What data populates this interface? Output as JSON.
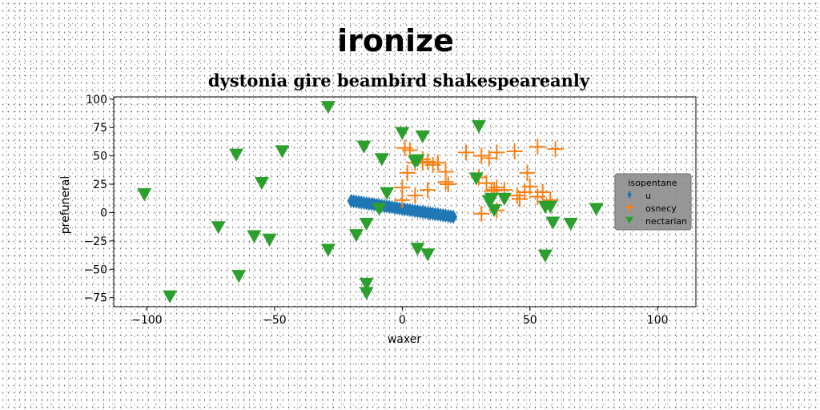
{
  "chart_data": {
    "type": "scatter",
    "title": "ironize",
    "subtitle": "dystonia gire beambird shakespeareanly",
    "xlabel": "waxer",
    "ylabel": "prefuneral",
    "xlim": [
      -113,
      115
    ],
    "ylim": [
      -83,
      102
    ],
    "xticks": [
      -100,
      -50,
      0,
      50,
      100
    ],
    "yticks": [
      -75,
      -50,
      -25,
      0,
      25,
      50,
      75,
      100
    ],
    "grid": false,
    "legend": {
      "title": "isopentane",
      "placement": "center-right"
    },
    "series": [
      {
        "name": "u",
        "marker": "thin_diamond",
        "color": "#1f77b4",
        "x": [
          -20,
          -19,
          -18,
          -17,
          -16,
          -15,
          -14,
          -13,
          -12,
          -11,
          -10,
          -9,
          -8,
          -7,
          -6,
          -5,
          -4,
          -3,
          -2,
          -1,
          0,
          1,
          2,
          3,
          4,
          5,
          6,
          7,
          8,
          9,
          10,
          11,
          12,
          13,
          14,
          15,
          16,
          17,
          18,
          19,
          20
        ],
        "y": [
          10.3,
          9.9,
          9.6,
          9.2,
          8.9,
          8.5,
          8.2,
          7.8,
          7.5,
          7.1,
          6.8,
          6.4,
          6.1,
          5.7,
          5.4,
          5.0,
          4.7,
          4.3,
          4.0,
          3.6,
          3.3,
          2.9,
          2.6,
          2.2,
          1.9,
          1.5,
          1.2,
          0.8,
          0.5,
          0.1,
          -0.2,
          -0.6,
          -0.9,
          -1.3,
          -1.6,
          -2.0,
          -2.3,
          -2.7,
          -3.0,
          -3.4,
          -3.7
        ]
      },
      {
        "name": "osnecy",
        "marker": "plus",
        "color": "#ff7f0e",
        "x": [
          1,
          3,
          5,
          8,
          10,
          12,
          14,
          17,
          25,
          31,
          34,
          37,
          44,
          53,
          60,
          0,
          2,
          8,
          10,
          17,
          18,
          0,
          5,
          30,
          33,
          36,
          48,
          50,
          53,
          55,
          58,
          35,
          37,
          40,
          45,
          46,
          49,
          31,
          37
        ],
        "y": [
          57,
          55,
          44,
          47,
          45,
          42,
          44,
          36,
          53,
          50,
          48,
          53,
          54,
          58,
          56,
          22,
          35,
          44,
          20,
          27,
          25,
          11,
          15,
          31,
          26,
          20,
          18,
          23,
          14,
          18,
          11,
          19,
          22,
          20,
          15,
          12,
          35,
          -1,
          2
        ],
        "y_note": ""
      },
      {
        "name": "nectarian",
        "marker": "triangle_down",
        "color": "#2ca02c",
        "x": [
          -29,
          -65,
          -47,
          -55,
          -101,
          -72,
          -58,
          -52,
          -64,
          -91,
          -29,
          -18,
          -14,
          -15,
          -14,
          -14,
          -9,
          -6,
          -8,
          0,
          8,
          5,
          6,
          30,
          29,
          35,
          34,
          40,
          36,
          56,
          59,
          66,
          76,
          56,
          58,
          10,
          6
        ],
        "y": [
          93,
          51,
          54,
          26,
          16,
          -13,
          -21,
          -24,
          -56,
          -74,
          -33,
          -20,
          -10,
          58,
          -63,
          -71,
          3,
          17,
          47,
          70,
          67,
          45,
          46,
          76,
          30,
          12,
          10,
          12,
          2,
          5,
          -9,
          -10,
          3,
          -38,
          5,
          -37,
          -32
        ]
      }
    ]
  }
}
